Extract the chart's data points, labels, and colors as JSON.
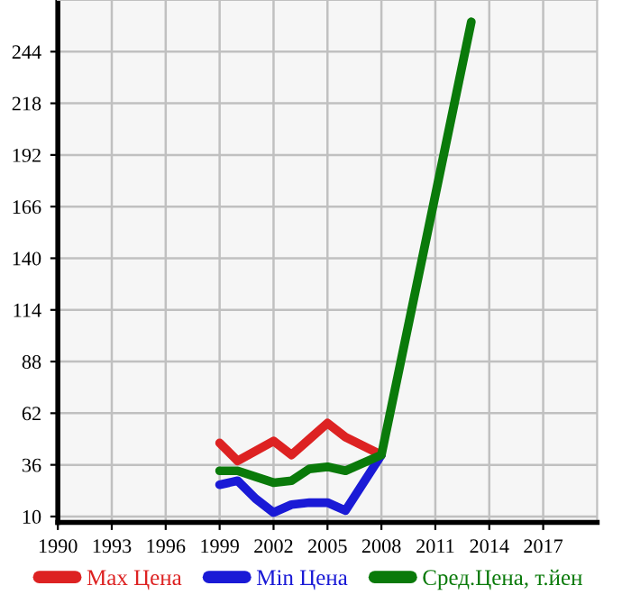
{
  "chart_data": {
    "type": "line",
    "x": [
      1999,
      2000,
      2001,
      2002,
      2003,
      2004,
      2005,
      2006,
      2008
    ],
    "series": [
      {
        "name": "Max Цена",
        "color": "#dd2222",
        "values": [
          47,
          38,
          43,
          48,
          41,
          49,
          57,
          50,
          41
        ]
      },
      {
        "name": "Min Цена",
        "color": "#1a1ad6",
        "values": [
          26,
          28,
          19,
          12,
          16,
          17,
          17,
          13,
          41
        ]
      },
      {
        "name": "Сред.Цена, т.йен",
        "color": "#0a7a0a",
        "x": [
          1999,
          2000,
          2001,
          2002,
          2003,
          2004,
          2005,
          2006,
          2008,
          2013
        ],
        "values": [
          33,
          33,
          30,
          27,
          28,
          34,
          35,
          33,
          41,
          259
        ]
      }
    ],
    "xlim": [
      1990,
      2020
    ],
    "ylim": [
      7,
      270
    ],
    "xticks": [
      1990,
      1993,
      1996,
      1999,
      2002,
      2005,
      2008,
      2011,
      2014,
      2017
    ],
    "yticks": [
      10,
      36,
      62,
      88,
      114,
      140,
      166,
      192,
      218,
      244
    ],
    "grid": true,
    "legend": "bottom",
    "marker": "none",
    "line_style": "solid"
  }
}
